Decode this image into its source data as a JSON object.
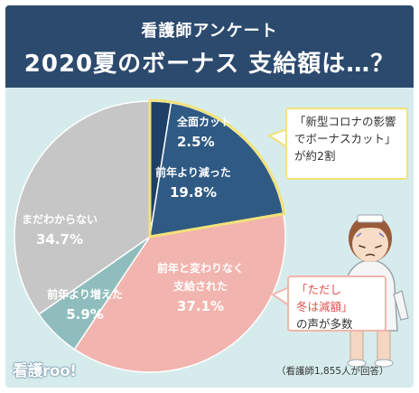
{
  "header": {
    "subtitle": "看護師アンケート",
    "title": "2020夏のボーナス 支給額は…？"
  },
  "chart_data": {
    "type": "pie",
    "categories": [
      "全面カット",
      "前年より減った",
      "前年と変わりなく支給された",
      "前年より増えた",
      "まだわからない"
    ],
    "values": [
      2.5,
      19.8,
      37.1,
      5.9,
      34.7
    ],
    "labels": [
      {
        "lines": [
          "全面カット",
          "2.5%"
        ]
      },
      {
        "lines": [
          "前年より減った",
          "19.8%"
        ]
      },
      {
        "lines": [
          "前年と変わりなく",
          "支給された",
          "37.1%"
        ]
      },
      {
        "lines": [
          "前年より増えた",
          "5.9%"
        ]
      },
      {
        "lines": [
          "まだわからない",
          "34.7%"
        ]
      }
    ],
    "colors": [
      "#1e3f66",
      "#2f5a83",
      "#f2b4ae",
      "#8fbdbd",
      "#c6c6c6"
    ],
    "highlight_color": "#f3e27a"
  },
  "callouts": {
    "top": {
      "lines": [
        "「新型コロナの影響",
        "でボーナスカット」",
        "が約2割"
      ]
    },
    "bottom": {
      "line1": "「ただし",
      "line2": "冬は減額」",
      "line3": "の声が多数"
    }
  },
  "logo": "看護roo!",
  "footnote": "（看護師1,855人が回答）"
}
